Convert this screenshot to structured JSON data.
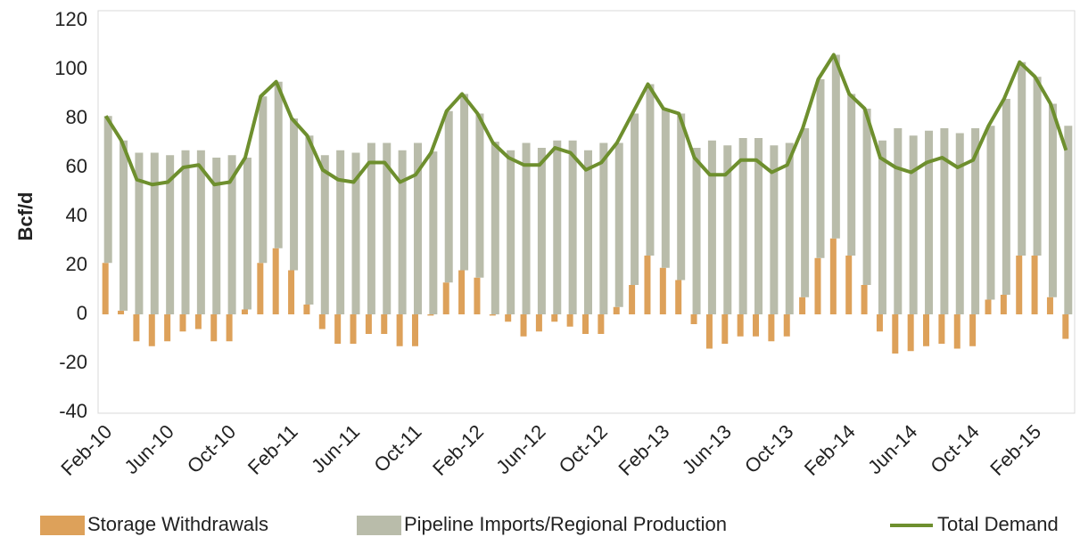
{
  "chart_data": {
    "type": "bar_line",
    "y_label": "Bcf/d",
    "categories": [
      "Feb-10",
      null,
      null,
      null,
      "Jun-10",
      null,
      null,
      null,
      "Oct-10",
      null,
      null,
      null,
      "Feb-11",
      null,
      null,
      null,
      "Jun-11",
      null,
      null,
      null,
      "Oct-11",
      null,
      null,
      null,
      "Feb-12",
      null,
      null,
      null,
      "Jun-12",
      null,
      null,
      null,
      "Oct-12",
      null,
      null,
      null,
      "Feb-13",
      null,
      null,
      null,
      "Jun-13",
      null,
      null,
      null,
      "Oct-13",
      null,
      null,
      null,
      "Feb-14",
      null,
      null,
      null,
      "Jun-14",
      null,
      null,
      null,
      "Oct-14",
      null,
      null,
      null,
      "Feb-15",
      null,
      null
    ],
    "series": [
      {
        "name": "Storage Withdrawals",
        "color": "#dda15a",
        "kind": "bar",
        "values": [
          21,
          1.5,
          -11,
          -13,
          -11,
          -7,
          -6,
          -11,
          -11,
          2,
          21,
          27,
          18,
          4,
          -6,
          -12,
          -12,
          -8,
          -8,
          -13,
          -13,
          -0.5,
          13,
          18,
          15,
          -0.5,
          -3,
          -9,
          -7,
          -3,
          -5,
          -8,
          -8,
          3,
          12,
          24,
          19,
          14,
          -4,
          -14,
          -12,
          -9,
          -9,
          -11,
          -9,
          7,
          23,
          31,
          24,
          12,
          -7,
          -16,
          -15,
          -13,
          -12,
          -14,
          -13,
          6,
          8,
          24,
          24,
          7,
          -10
        ]
      },
      {
        "name": "Pipeline Imports/Regional Production",
        "color": "#b9bcaa",
        "kind": "bar",
        "values": [
          60,
          69.5,
          66,
          66,
          65,
          67,
          67,
          64,
          65,
          62,
          68,
          68,
          62,
          69,
          65,
          67,
          66,
          70,
          70,
          67,
          70,
          66.5,
          70,
          72,
          67,
          70.5,
          67,
          70,
          68,
          71,
          71,
          67,
          70,
          67,
          70,
          70,
          65,
          68,
          68,
          71,
          69,
          72,
          72,
          69,
          70,
          69,
          73,
          75,
          66,
          72,
          71,
          76,
          73,
          75,
          76,
          74,
          76,
          71,
          80,
          79,
          73,
          79,
          77
        ]
      },
      {
        "name": "Total Demand",
        "color": "#6e8f2e",
        "kind": "line",
        "values": [
          81,
          71,
          55,
          53,
          54,
          60,
          61,
          53,
          54,
          64,
          89,
          95,
          80,
          73,
          59,
          55,
          54,
          62,
          62,
          54,
          57,
          66,
          83,
          90,
          82,
          70,
          64,
          61,
          61,
          68,
          66,
          59,
          62,
          70,
          82,
          94,
          84,
          82,
          64,
          57,
          57,
          63,
          63,
          58,
          61,
          76,
          96,
          106,
          90,
          84,
          64,
          60,
          58,
          62,
          64,
          60,
          63,
          77,
          88,
          103,
          97,
          86,
          67
        ]
      }
    ],
    "ylim": [
      -40,
      120
    ],
    "yticks": [
      -40,
      -20,
      0,
      20,
      40,
      60,
      80,
      100,
      120
    ],
    "grid": false
  }
}
